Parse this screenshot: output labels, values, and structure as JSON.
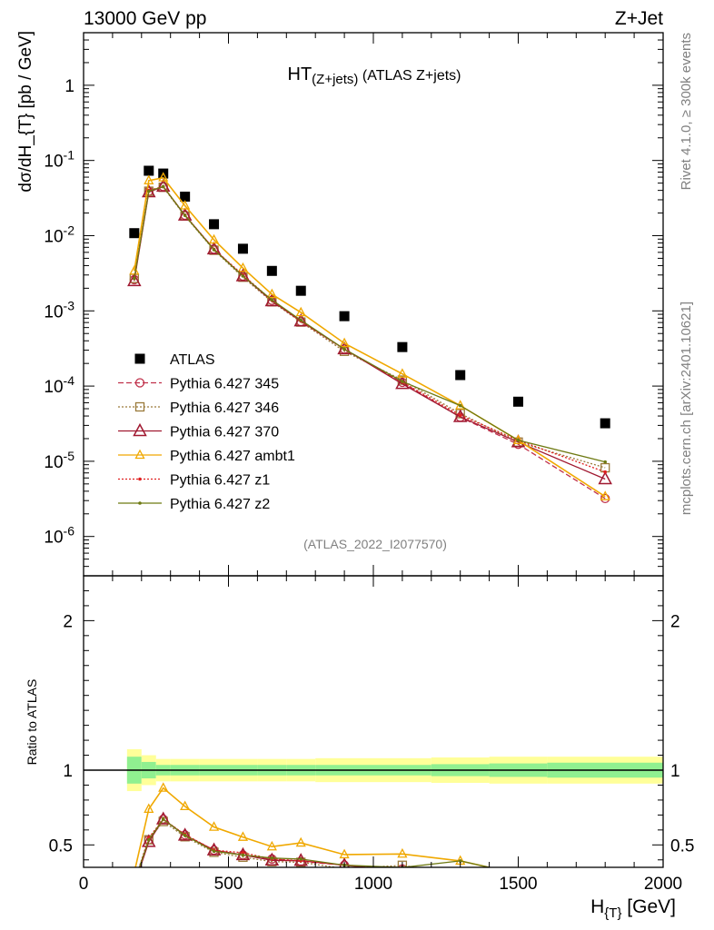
{
  "header": {
    "left": "13000 GeV pp",
    "right": "Z+Jet"
  },
  "side_texts": {
    "rivet": "Rivet 4.1.0, ≥ 300k events",
    "mcplots": "mcplots.cern.ch [arXiv:2401.10621]"
  },
  "colors": {
    "atlas": "#000000",
    "p345": "#c0304a",
    "p346": "#9a7a3a",
    "p370": "#a01830",
    "ambt1": "#f0a800",
    "z1": "#e02020",
    "z2": "#6e7a12",
    "band_inner": "#90f090",
    "band_outer": "#ffff99"
  },
  "chart_data": {
    "type": "line",
    "title_main": "HT",
    "title_sub": "(Z+jets)",
    "title_tail": " (ATLAS Z+jets)",
    "xlabel_main": "H",
    "xlabel_sub": "{T}",
    "xlabel_tail": " [GeV]",
    "ylabel": "dσ/dH_{T} [pb / GeV]",
    "ratio_ylabel": "Ratio to ATLAS",
    "analysis_id": "(ATLAS_2022_I2077570)",
    "xlim": [
      0,
      2000
    ],
    "ylim_log": [
      3e-07,
      5
    ],
    "ratio_ylim": [
      0.35,
      2.3
    ],
    "x_ticks": [
      0,
      500,
      1000,
      1500,
      2000
    ],
    "x_tick_labels": [
      "0",
      "500",
      "1000",
      "1500",
      "2000"
    ],
    "y_tick_labels": [
      "10^{-6}",
      "10^{-5}",
      "10^{-4}",
      "10^{-3}",
      "10^{-2}",
      "10^{-1}",
      "1"
    ],
    "y_tick_values": [
      1e-06,
      1e-05,
      0.0001,
      0.001,
      0.01,
      0.1,
      1
    ],
    "ratio_ticks": [
      0.5,
      1,
      2
    ],
    "ratio_tick_labels": [
      "0.5",
      "1",
      "2"
    ],
    "bin_edges": [
      150,
      200,
      250,
      300,
      400,
      500,
      600,
      700,
      800,
      1000,
      1200,
      1400,
      1600,
      2000
    ],
    "x": [
      175,
      225,
      275,
      350,
      450,
      550,
      650,
      750,
      900,
      1100,
      1300,
      1500,
      1800
    ],
    "band_inner": [
      0.09,
      0.055,
      0.035,
      0.035,
      0.035,
      0.035,
      0.035,
      0.035,
      0.035,
      0.035,
      0.04,
      0.045,
      0.05
    ],
    "band_outer": [
      0.14,
      0.1,
      0.075,
      0.075,
      0.075,
      0.075,
      0.075,
      0.075,
      0.08,
      0.08,
      0.085,
      0.09,
      0.09
    ],
    "series": [
      {
        "name": "ATLAS",
        "key": "atlas",
        "marker": "square",
        "line": "none",
        "values": [
          0.0108,
          0.073,
          0.067,
          0.033,
          0.0142,
          0.0067,
          0.0034,
          0.00185,
          0.00085,
          0.00033,
          0.00014,
          6.2e-05,
          3.2e-05
        ]
      },
      {
        "name": "Pythia 6.427 345",
        "key": "p345",
        "marker": "circle",
        "line": "dashed",
        "values": [
          0.0026,
          0.039,
          0.045,
          0.0187,
          0.0066,
          0.0029,
          0.00138,
          0.00072,
          0.00031,
          0.000112,
          3.85e-05,
          1.68e-05,
          3.2e-06
        ]
      },
      {
        "name": "Pythia 6.427 346",
        "key": "p346",
        "marker": "square-open",
        "line": "dotted",
        "values": [
          0.0027,
          0.039,
          0.044,
          0.0183,
          0.0064,
          0.0028,
          0.00132,
          0.00071,
          0.00029,
          0.00012,
          4.3e-05,
          1.8e-05,
          8.2e-06
        ]
      },
      {
        "name": "Pythia 6.427 370",
        "key": "p370",
        "marker": "triangle",
        "line": "solid",
        "values": [
          0.0025,
          0.038,
          0.045,
          0.0186,
          0.0066,
          0.0029,
          0.00135,
          0.00073,
          0.00031,
          0.000107,
          3.9e-05,
          1.8e-05,
          5.8e-06
        ]
      },
      {
        "name": "Pythia 6.427 ambt1",
        "key": "ambt1",
        "marker": "triangle-small",
        "line": "solid",
        "values": [
          0.0034,
          0.054,
          0.059,
          0.025,
          0.0088,
          0.0037,
          0.00166,
          0.00095,
          0.00037,
          0.000145,
          5.5e-05,
          1.9e-05,
          3.4e-06
        ]
      },
      {
        "name": "Pythia 6.427 z1",
        "key": "z1",
        "marker": "dot",
        "line": "dotted",
        "values": [
          0.0027,
          0.04,
          0.045,
          0.0188,
          0.0066,
          0.003,
          0.00138,
          0.00073,
          0.00031,
          0.000113,
          4.1e-05,
          1.9e-05,
          7.2e-06
        ]
      },
      {
        "name": "Pythia 6.427 z2",
        "key": "z2",
        "marker": "dot",
        "line": "solid",
        "values": [
          0.0027,
          0.039,
          0.045,
          0.0186,
          0.0065,
          0.0029,
          0.0014,
          0.00075,
          0.00031,
          0.000115,
          5.5e-05,
          1.9e-05,
          9.8e-06
        ]
      }
    ]
  }
}
